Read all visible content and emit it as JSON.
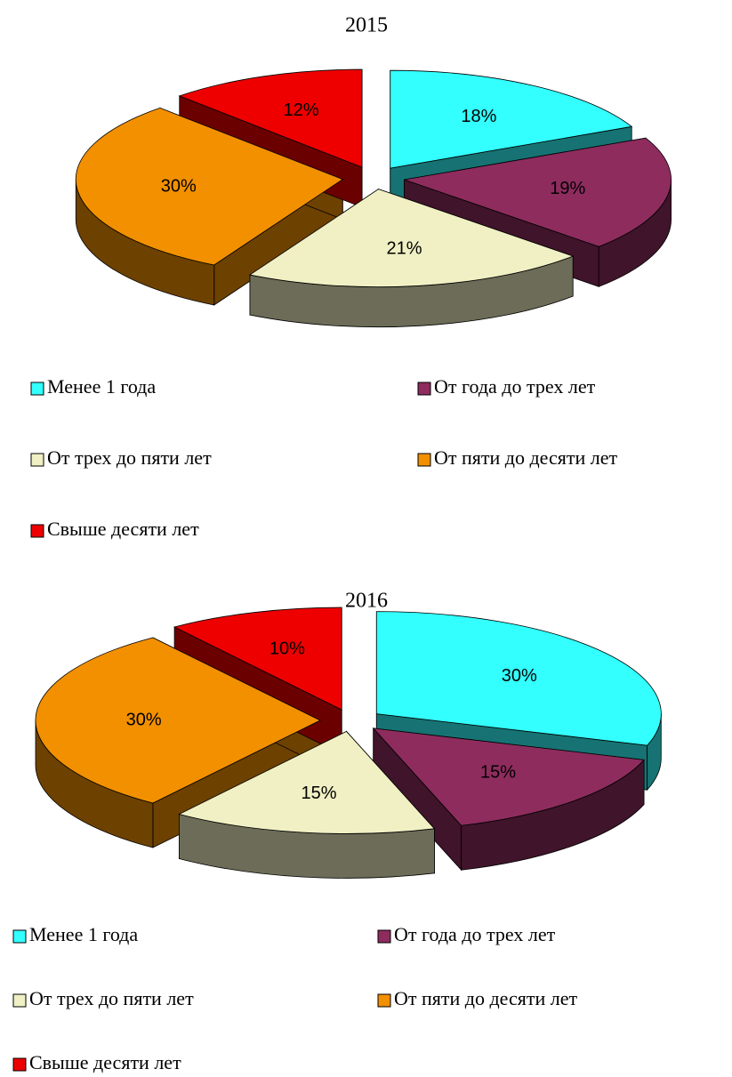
{
  "chart_data": [
    {
      "type": "pie",
      "title": "2015",
      "categories": [
        "Менее 1 года",
        "От года до трех лет",
        "От трех до пяти лет",
        "От пяти до десяти лет",
        "Свыше десяти лет"
      ],
      "values": [
        18,
        19,
        21,
        30,
        12
      ],
      "value_labels": [
        "18%",
        "19%",
        "21%",
        "30%",
        "12%"
      ],
      "colors": [
        "#33ffff",
        "#8e2c5e",
        "#f0f0c4",
        "#f29000",
        "#ee0000"
      ]
    },
    {
      "type": "pie",
      "title": "2016",
      "categories": [
        "Менее 1 года",
        "От года до трех лет",
        "От трех до пяти лет",
        "От пяти до десяти лет",
        "Свыше десяти лет"
      ],
      "values": [
        30,
        15,
        15,
        30,
        10
      ],
      "value_labels": [
        "30%",
        "15%",
        "15%",
        "30%",
        "10%"
      ],
      "colors": [
        "#33ffff",
        "#8e2c5e",
        "#f0f0c4",
        "#f29000",
        "#ee0000"
      ]
    }
  ]
}
